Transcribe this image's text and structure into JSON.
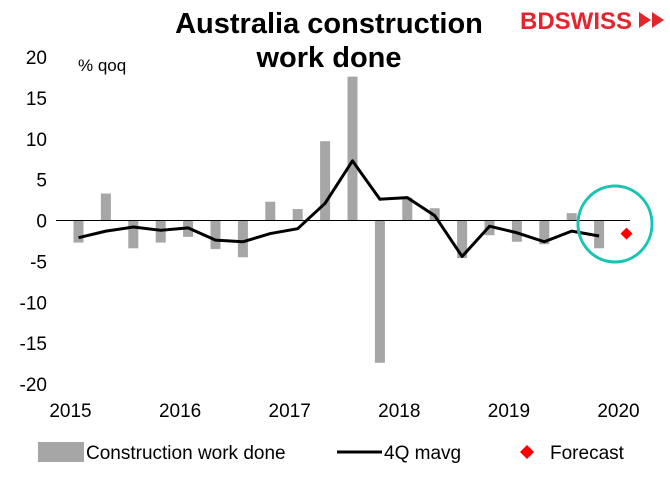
{
  "brand": {
    "text_bd": "BD",
    "text_swiss": "SWISS"
  },
  "colors": {
    "bar": "#a6a6a6",
    "line": "#000000",
    "forecast": "#ff0000",
    "circle": "#19c4b4",
    "brand": "#e3262e"
  },
  "chart_data": {
    "type": "bar",
    "title_line1": "Australia construction",
    "title_line2": "work done",
    "ylabel": "% qoq",
    "ylim": [
      -20,
      20
    ],
    "yticks": [
      "20",
      "15",
      "10",
      "5",
      "0",
      "-5",
      "-10",
      "-15",
      "-20"
    ],
    "ytick_values": [
      20,
      15,
      10,
      5,
      0,
      -5,
      -10,
      -15,
      -20
    ],
    "xtick_labels": [
      "2015",
      "2016",
      "2017",
      "2018",
      "2019",
      "2020"
    ],
    "series": [
      {
        "name": "Construction work done",
        "type": "bar",
        "values": [
          -2.7,
          3.3,
          -3.4,
          -2.7,
          -2.0,
          -3.5,
          -4.5,
          2.3,
          1.4,
          9.7,
          17.6,
          -17.4,
          2.8,
          1.5,
          -4.6,
          -1.8,
          -2.6,
          -2.9,
          0.9,
          -3.4
        ]
      },
      {
        "name": "4Q mavg",
        "type": "line",
        "values": [
          -2.1,
          -1.3,
          -0.8,
          -1.2,
          -0.9,
          -2.4,
          -2.6,
          -1.6,
          -1.0,
          2.1,
          7.3,
          2.6,
          2.8,
          0.6,
          -4.4,
          -0.7,
          -1.5,
          -2.6,
          -1.3,
          -1.9
        ]
      },
      {
        "name": "Forecast",
        "type": "scatter",
        "values": [
          -1.6
        ]
      }
    ],
    "legend": [
      "Construction work done",
      "4Q mavg",
      "Forecast"
    ],
    "legend_position": "bottom",
    "grid": false
  }
}
